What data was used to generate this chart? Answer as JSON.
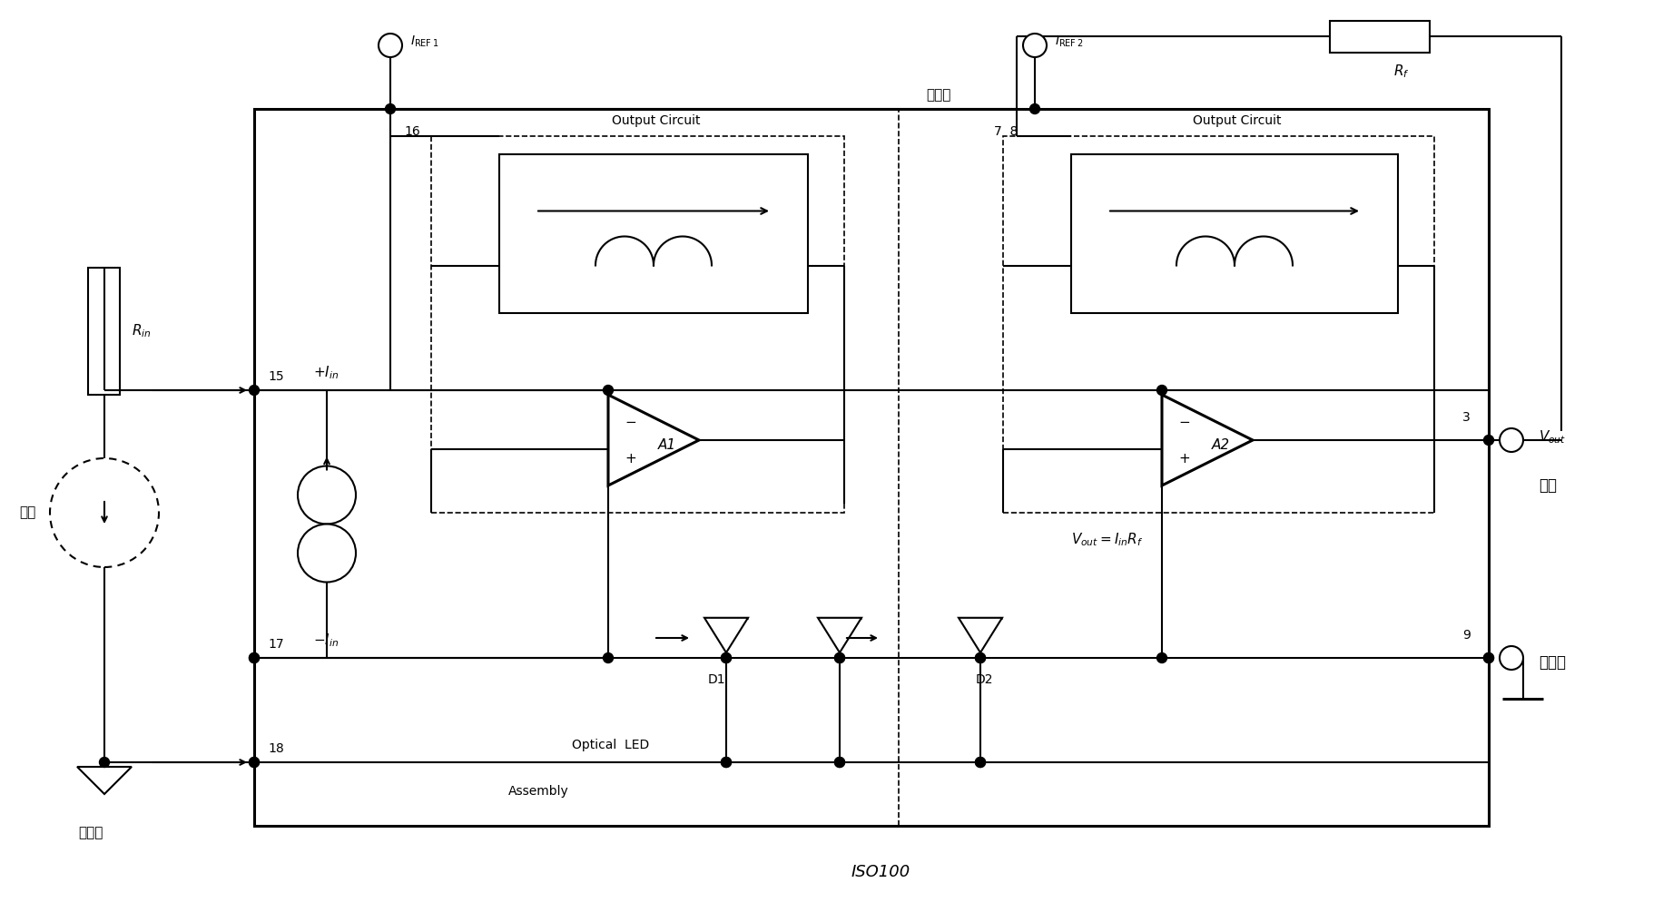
{
  "bg": "#ffffff",
  "lc": "#000000",
  "fig_w": 18.33,
  "fig_h": 10.05,
  "dpi": 100,
  "label_iso": "隔离层",
  "label_oc": "Output Circuit",
  "label_optical": "Optical  LED",
  "label_assembly": "Assembly",
  "label_iso100": "ISO100",
  "label_input": "输入",
  "label_input_gnd": "输入地",
  "label_output": "输出",
  "label_output_gnd": "输出地",
  "label_vout": "V_{out}",
  "label_formula": "V_{out}=I_{in}R_f"
}
